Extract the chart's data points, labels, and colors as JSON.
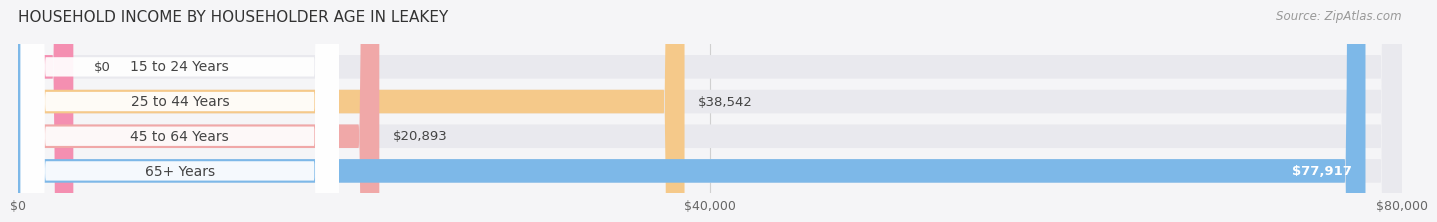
{
  "title": "HOUSEHOLD INCOME BY HOUSEHOLDER AGE IN LEAKEY",
  "source": "Source: ZipAtlas.com",
  "categories": [
    "15 to 24 Years",
    "25 to 44 Years",
    "45 to 64 Years",
    "65+ Years"
  ],
  "values": [
    0,
    38542,
    20893,
    77917
  ],
  "bar_colors": [
    "#f48fb1",
    "#f5c98a",
    "#f0a8a8",
    "#7db8e8"
  ],
  "bg_color": "#e9e9ee",
  "label_pill_color": "#ffffff",
  "xlim": [
    0,
    80000
  ],
  "xticks": [
    0,
    40000,
    80000
  ],
  "xticklabels": [
    "$0",
    "$40,000",
    "$80,000"
  ],
  "value_labels": [
    "$0",
    "$38,542",
    "$20,893",
    "$77,917"
  ],
  "bar_height": 0.68,
  "background_color": "#f5f5f7",
  "title_fontsize": 11,
  "label_fontsize": 10,
  "tick_fontsize": 9,
  "source_fontsize": 8.5,
  "grid_color": "#d0d0d0",
  "text_color": "#444444",
  "source_color": "#999999"
}
